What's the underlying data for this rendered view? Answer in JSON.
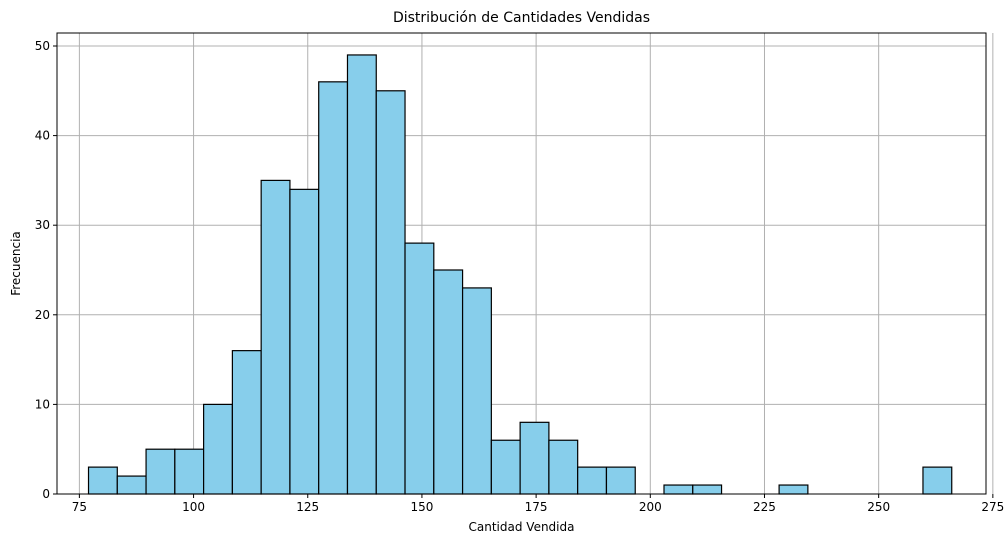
{
  "chart_data": {
    "type": "bar",
    "title": "Distribución de Cantidades Vendidas",
    "xlabel": "Cantidad Vendida",
    "ylabel": "Frecuencia",
    "xlim": [
      70.1,
      273.5
    ],
    "ylim": [
      0,
      51.45
    ],
    "xticks": [
      75,
      100,
      125,
      150,
      175,
      200,
      225,
      250,
      275
    ],
    "yticks": [
      0,
      10,
      20,
      30,
      40,
      50
    ],
    "grid": true,
    "bar_color": "#87ceeb",
    "edge_color": "#000000",
    "bins": [
      {
        "x0": 77.0,
        "x1": 83.3,
        "value": 3
      },
      {
        "x0": 83.3,
        "x1": 89.6,
        "value": 2
      },
      {
        "x0": 89.6,
        "x1": 95.9,
        "value": 5
      },
      {
        "x0": 95.9,
        "x1": 102.2,
        "value": 5
      },
      {
        "x0": 102.2,
        "x1": 108.5,
        "value": 10
      },
      {
        "x0": 108.5,
        "x1": 114.8,
        "value": 16
      },
      {
        "x0": 114.8,
        "x1": 121.1,
        "value": 35
      },
      {
        "x0": 121.1,
        "x1": 127.4,
        "value": 34
      },
      {
        "x0": 127.4,
        "x1": 133.7,
        "value": 46
      },
      {
        "x0": 133.7,
        "x1": 140.0,
        "value": 49
      },
      {
        "x0": 140.0,
        "x1": 146.3,
        "value": 45
      },
      {
        "x0": 146.3,
        "x1": 152.6,
        "value": 28
      },
      {
        "x0": 152.6,
        "x1": 158.9,
        "value": 25
      },
      {
        "x0": 158.9,
        "x1": 165.2,
        "value": 23
      },
      {
        "x0": 165.2,
        "x1": 171.5,
        "value": 6
      },
      {
        "x0": 171.5,
        "x1": 177.8,
        "value": 8
      },
      {
        "x0": 177.8,
        "x1": 184.1,
        "value": 6
      },
      {
        "x0": 184.1,
        "x1": 190.4,
        "value": 3
      },
      {
        "x0": 190.4,
        "x1": 196.7,
        "value": 3
      },
      {
        "x0": 196.7,
        "x1": 203.0,
        "value": 0
      },
      {
        "x0": 203.0,
        "x1": 209.3,
        "value": 1
      },
      {
        "x0": 209.3,
        "x1": 215.6,
        "value": 1
      },
      {
        "x0": 215.6,
        "x1": 221.9,
        "value": 0
      },
      {
        "x0": 221.9,
        "x1": 228.2,
        "value": 0
      },
      {
        "x0": 228.2,
        "x1": 234.5,
        "value": 1
      },
      {
        "x0": 234.5,
        "x1": 240.8,
        "value": 0
      },
      {
        "x0": 240.8,
        "x1": 247.1,
        "value": 0
      },
      {
        "x0": 247.1,
        "x1": 253.4,
        "value": 0
      },
      {
        "x0": 253.4,
        "x1": 259.7,
        "value": 0
      },
      {
        "x0": 259.7,
        "x1": 266.0,
        "value": 3
      }
    ]
  }
}
